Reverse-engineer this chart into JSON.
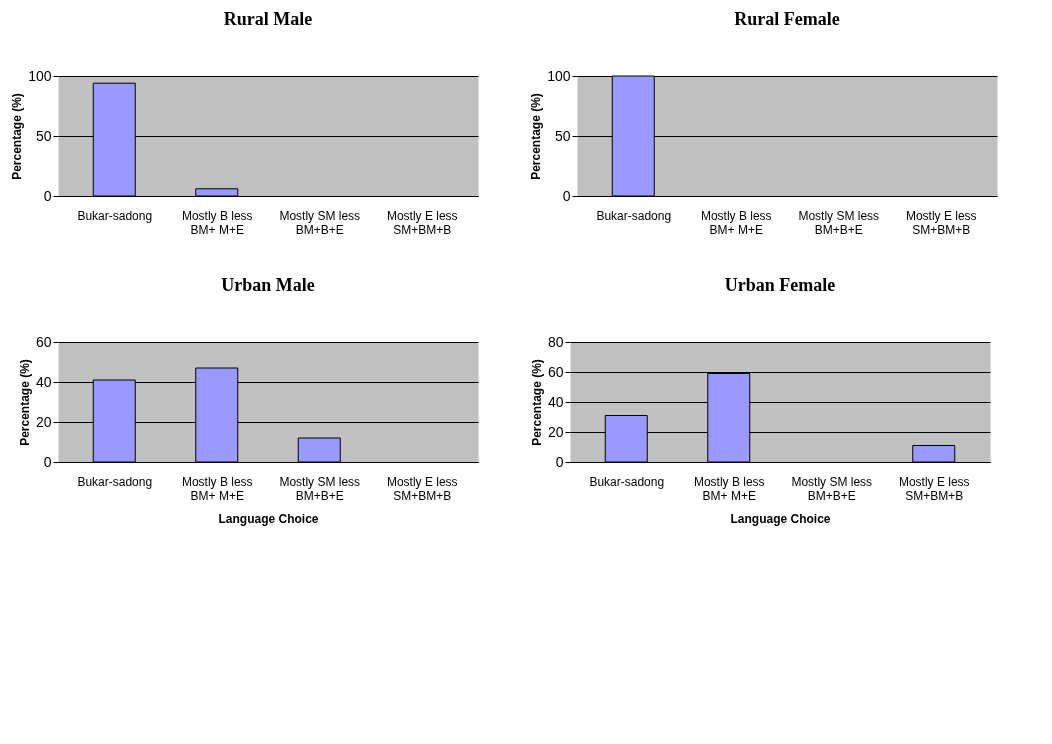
{
  "chart_data": [
    {
      "type": "bar",
      "title": "Rural Male",
      "ylabel": "Percentage (%)",
      "categories": [
        "Bukar-sadong",
        "Mostly B less\nBM+ M+E",
        "Mostly SM less\nBM+B+E",
        "Mostly E less\nSM+BM+B"
      ],
      "values": [
        94,
        6,
        0,
        0
      ],
      "color": "#9999ff",
      "ylim": [
        0,
        100
      ],
      "yticks": [
        0,
        50,
        100
      ],
      "grid": "y"
    },
    {
      "type": "bar",
      "title": "Rural Female",
      "ylabel": "Percentage (%)",
      "categories": [
        "Bukar-sadong",
        "Mostly B less\nBM+ M+E",
        "Mostly SM less\nBM+B+E",
        "Mostly E less\nSM+BM+B"
      ],
      "values": [
        100,
        0,
        0,
        0
      ],
      "color": "#9999ff",
      "ylim": [
        0,
        100
      ],
      "yticks": [
        0,
        50,
        100
      ],
      "grid": "y"
    },
    {
      "type": "bar",
      "title": "Urban Male",
      "ylabel": "Percentage (%)",
      "xlabel": "Language Choice",
      "categories": [
        "Bukar-sadong",
        "Mostly B less\nBM+ M+E",
        "Mostly SM less\nBM+B+E",
        "Mostly E less\nSM+BM+B"
      ],
      "values": [
        41,
        47,
        12,
        0
      ],
      "color": "#9999ff",
      "ylim": [
        0,
        60
      ],
      "yticks": [
        0,
        20,
        40,
        60
      ],
      "grid": "y"
    },
    {
      "type": "bar",
      "title": "Urban Female",
      "ylabel": "Percentage (%)",
      "xlabel": "Language Choice",
      "categories": [
        "Bukar-sadong",
        "Mostly B less\nBM+ M+E",
        "Mostly SM less\nBM+B+E",
        "Mostly E less\nSM+BM+B"
      ],
      "values": [
        31,
        59,
        0,
        11
      ],
      "color": "#9999ff",
      "ylim": [
        0,
        80
      ],
      "yticks": [
        0,
        20,
        40,
        60,
        80
      ],
      "grid": "y"
    }
  ]
}
